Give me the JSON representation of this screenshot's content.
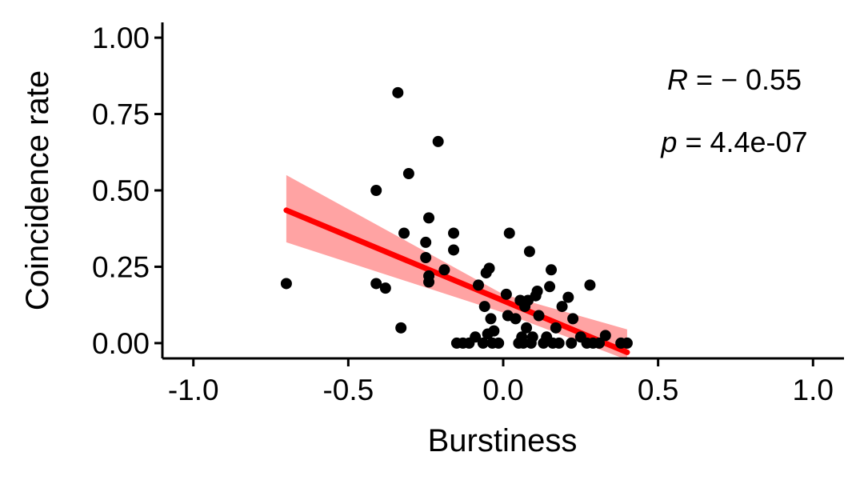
{
  "chart_data": {
    "type": "scatter",
    "xlabel": "Burstiness",
    "ylabel": "Coincidence rate",
    "xlim": [
      -1.1,
      1.1
    ],
    "ylim": [
      -0.05,
      1.05
    ],
    "x_ticks": [
      -1.0,
      -0.5,
      0.0,
      0.5,
      1.0
    ],
    "x_tick_labels": [
      "-1.0",
      "-0.5",
      "0.0",
      "0.5",
      "1.0"
    ],
    "y_ticks": [
      0.0,
      0.25,
      0.5,
      0.75,
      1.0
    ],
    "y_tick_labels": [
      "0.00",
      "0.25",
      "0.50",
      "0.75",
      "1.00"
    ],
    "grid": false,
    "point_color": "#000000",
    "fit_color": "#ff0000",
    "band_color": "#ff9999",
    "annotation": {
      "r_symbol": "R",
      "r_value": " = − 0.55",
      "p_symbol": "p",
      "p_value": " = 4.4e-07"
    },
    "regression": {
      "x": [
        -0.7,
        0.4
      ],
      "y": [
        0.435,
        -0.03
      ],
      "band": [
        {
          "x": -0.7,
          "lower": 0.33,
          "upper": 0.55
        },
        {
          "x": 0.0,
          "lower": 0.1,
          "upper": 0.16
        },
        {
          "x": 0.4,
          "lower": -0.055,
          "upper": 0.045
        }
      ]
    },
    "points": [
      {
        "x": -0.7,
        "y": 0.195
      },
      {
        "x": -0.41,
        "y": 0.5
      },
      {
        "x": -0.41,
        "y": 0.195
      },
      {
        "x": -0.38,
        "y": 0.18
      },
      {
        "x": -0.34,
        "y": 0.82
      },
      {
        "x": -0.33,
        "y": 0.05
      },
      {
        "x": -0.32,
        "y": 0.36
      },
      {
        "x": -0.305,
        "y": 0.555
      },
      {
        "x": -0.25,
        "y": 0.33
      },
      {
        "x": -0.25,
        "y": 0.28
      },
      {
        "x": -0.24,
        "y": 0.41
      },
      {
        "x": -0.24,
        "y": 0.22
      },
      {
        "x": -0.24,
        "y": 0.2
      },
      {
        "x": -0.21,
        "y": 0.66
      },
      {
        "x": -0.19,
        "y": 0.24
      },
      {
        "x": -0.16,
        "y": 0.36
      },
      {
        "x": -0.16,
        "y": 0.305
      },
      {
        "x": -0.15,
        "y": 0.0
      },
      {
        "x": -0.13,
        "y": 0.0
      },
      {
        "x": -0.11,
        "y": 0.0
      },
      {
        "x": -0.09,
        "y": 0.02
      },
      {
        "x": -0.08,
        "y": 0.19
      },
      {
        "x": -0.065,
        "y": 0.0
      },
      {
        "x": -0.06,
        "y": 0.12
      },
      {
        "x": -0.055,
        "y": 0.23
      },
      {
        "x": -0.05,
        "y": 0.03
      },
      {
        "x": -0.045,
        "y": 0.245
      },
      {
        "x": -0.04,
        "y": 0.08
      },
      {
        "x": -0.035,
        "y": 0.0
      },
      {
        "x": -0.03,
        "y": 0.04
      },
      {
        "x": -0.015,
        "y": 0.0
      },
      {
        "x": 0.01,
        "y": 0.16
      },
      {
        "x": 0.015,
        "y": 0.09
      },
      {
        "x": 0.02,
        "y": 0.36
      },
      {
        "x": 0.04,
        "y": 0.08
      },
      {
        "x": 0.05,
        "y": 0.0
      },
      {
        "x": 0.055,
        "y": 0.14
      },
      {
        "x": 0.06,
        "y": 0.02
      },
      {
        "x": 0.065,
        "y": 0.0
      },
      {
        "x": 0.07,
        "y": 0.12
      },
      {
        "x": 0.075,
        "y": 0.05
      },
      {
        "x": 0.08,
        "y": 0.14
      },
      {
        "x": 0.085,
        "y": 0.3
      },
      {
        "x": 0.09,
        "y": 0.0
      },
      {
        "x": 0.095,
        "y": 0.02
      },
      {
        "x": 0.105,
        "y": 0.155
      },
      {
        "x": 0.11,
        "y": 0.17
      },
      {
        "x": 0.115,
        "y": 0.09
      },
      {
        "x": 0.13,
        "y": 0.0
      },
      {
        "x": 0.14,
        "y": 0.02
      },
      {
        "x": 0.15,
        "y": 0.185
      },
      {
        "x": 0.155,
        "y": 0.24
      },
      {
        "x": 0.16,
        "y": 0.0
      },
      {
        "x": 0.17,
        "y": 0.05
      },
      {
        "x": 0.18,
        "y": 0.0
      },
      {
        "x": 0.19,
        "y": 0.12
      },
      {
        "x": 0.21,
        "y": 0.15
      },
      {
        "x": 0.22,
        "y": 0.0
      },
      {
        "x": 0.225,
        "y": 0.08
      },
      {
        "x": 0.25,
        "y": 0.02
      },
      {
        "x": 0.27,
        "y": 0.0
      },
      {
        "x": 0.28,
        "y": 0.19
      },
      {
        "x": 0.29,
        "y": 0.0
      },
      {
        "x": 0.31,
        "y": 0.0
      },
      {
        "x": 0.33,
        "y": 0.025
      },
      {
        "x": 0.38,
        "y": 0.0
      },
      {
        "x": 0.4,
        "y": 0.0
      }
    ]
  }
}
